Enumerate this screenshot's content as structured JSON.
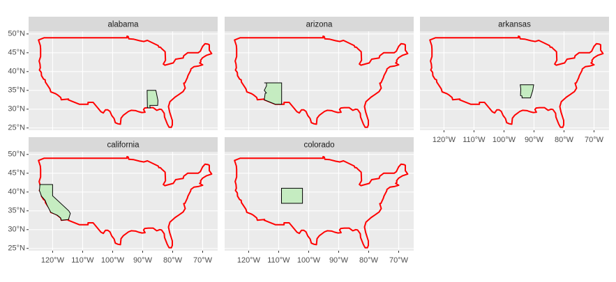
{
  "map": {
    "panels": [
      {
        "title": "alabama"
      },
      {
        "title": "arizona"
      },
      {
        "title": "arkansas"
      },
      {
        "title": "california"
      },
      {
        "title": "colorado"
      }
    ],
    "xlim": [
      -128,
      -65
    ],
    "ylim": [
      24.4,
      50.7
    ],
    "xticks": [
      {
        "value": -120,
        "label": "120°W"
      },
      {
        "value": -110,
        "label": "110°W"
      },
      {
        "value": -100,
        "label": "100°W"
      },
      {
        "value": -90,
        "label": "90°W"
      },
      {
        "value": -80,
        "label": "80°W"
      },
      {
        "value": -70,
        "label": "70°W"
      }
    ],
    "yticks": [
      {
        "value": 25,
        "label": "25°N"
      },
      {
        "value": 30,
        "label": "30°N"
      },
      {
        "value": 35,
        "label": "35°N"
      },
      {
        "value": 40,
        "label": "40°N"
      },
      {
        "value": 45,
        "label": "45°N"
      },
      {
        "value": 50,
        "label": "50°N"
      }
    ],
    "outline_color": "#ff0000",
    "fill_color": "#c5ecc1",
    "grid": true
  }
}
